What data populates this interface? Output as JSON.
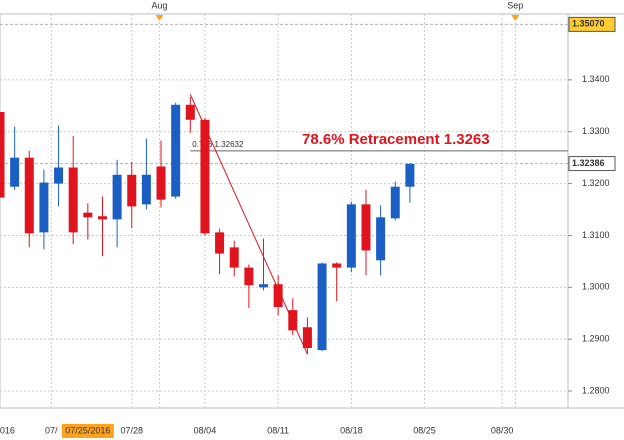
{
  "chart_data": {
    "type": "candlestick",
    "categories": [
      null,
      null,
      null,
      null,
      null,
      null,
      null,
      null,
      null,
      null,
      null,
      null,
      null,
      null,
      null,
      null,
      null,
      null,
      null,
      null,
      null,
      null,
      null,
      null,
      null,
      null,
      null,
      null,
      null
    ],
    "open": [
      1.3338,
      1.3194,
      1.325,
      1.3106,
      1.32,
      1.3231,
      1.3144,
      1.3137,
      1.3131,
      1.3217,
      1.316,
      1.3233,
      1.3175,
      1.3352,
      1.3323,
      1.3106,
      1.3077,
      1.3038,
      1.3,
      1.3006,
      1.2956,
      1.2923,
      1.2879,
      1.3046,
      1.3038,
      1.316,
      1.3052,
      1.3133,
      1.3194
    ],
    "high": [
      1.3338,
      1.331,
      1.3263,
      1.3227,
      1.3312,
      1.3292,
      1.3162,
      1.3175,
      1.3246,
      1.3242,
      1.3287,
      1.3283,
      1.3356,
      1.3367,
      1.3327,
      1.3113,
      1.309,
      1.3044,
      1.3094,
      1.3023,
      1.2979,
      1.2942,
      1.3048,
      1.3048,
      1.3165,
      1.3188,
      1.3158,
      1.3204,
      1.324
    ],
    "low": [
      1.3173,
      1.3188,
      1.3077,
      1.3073,
      1.3156,
      1.3083,
      1.3092,
      1.306,
      1.3077,
      1.3114,
      1.315,
      1.3154,
      1.3171,
      1.3298,
      1.31,
      1.3025,
      1.3021,
      1.296,
      1.2994,
      1.2946,
      1.2908,
      1.2871,
      1.2877,
      1.2973,
      1.3029,
      1.3023,
      1.3023,
      1.3129,
      1.3163
    ],
    "close": [
      1.3173,
      1.325,
      1.3104,
      1.3202,
      1.3231,
      1.3106,
      1.3135,
      1.3131,
      1.3217,
      1.3156,
      1.3217,
      1.3169,
      1.3352,
      1.3323,
      1.3104,
      1.3065,
      1.3038,
      1.3004,
      1.3006,
      1.2962,
      1.2917,
      1.2883,
      1.3046,
      1.3038,
      1.316,
      1.3071,
      1.3135,
      1.3194,
      1.3238
    ],
    "up_color": "#1c5fc4",
    "down_color": "#e0141e",
    "xlim": [
      0,
      38.8
    ],
    "ylim": [
      1.27673,
      1.3527
    ],
    "yticks": [
      {
        "value": 1.28,
        "label": "1.2800"
      },
      {
        "value": 1.29,
        "label": "1.2900"
      },
      {
        "value": 1.3,
        "label": "1.3000"
      },
      {
        "value": 1.31,
        "label": "1.3100"
      },
      {
        "value": 1.32,
        "label": "1.3200"
      },
      {
        "value": 1.33,
        "label": "1.3300"
      },
      {
        "value": 1.34,
        "label": "1.3400"
      }
    ],
    "xticks": [
      {
        "value": 0.5,
        "label": "016"
      },
      {
        "value": 3.5,
        "label": "07/"
      },
      {
        "value": 9,
        "label": "07/28"
      },
      {
        "value": 14,
        "label": "08/04"
      },
      {
        "value": 19,
        "label": "08/11"
      },
      {
        "value": 24,
        "label": "08/18"
      },
      {
        "value": 29,
        "label": "08/25"
      },
      {
        "value": 34.3,
        "label": "08/30"
      }
    ],
    "highlight_xtick": {
      "value": 6,
      "label": "07/25/2016"
    },
    "top_ticks": [
      {
        "value": 10.9,
        "label": "Aug"
      },
      {
        "value": 35.2,
        "label": "Sep"
      }
    ],
    "price_labels": [
      {
        "value": 1.3507,
        "label": "1.35070",
        "color": "#ffcc33"
      },
      {
        "value": 1.32386,
        "label": "1.32386",
        "color": "#ffffff"
      }
    ],
    "grid": true,
    "trend_line": {
      "x": [
        13,
        21
      ],
      "y": [
        1.3372,
        1.2871
      ],
      "color": "#e0141e"
    },
    "fib_level": {
      "x": 13,
      "value": 1.32632,
      "label": "0.786 1.32632"
    },
    "annotation": "78.6% Retracement  1.3263"
  }
}
